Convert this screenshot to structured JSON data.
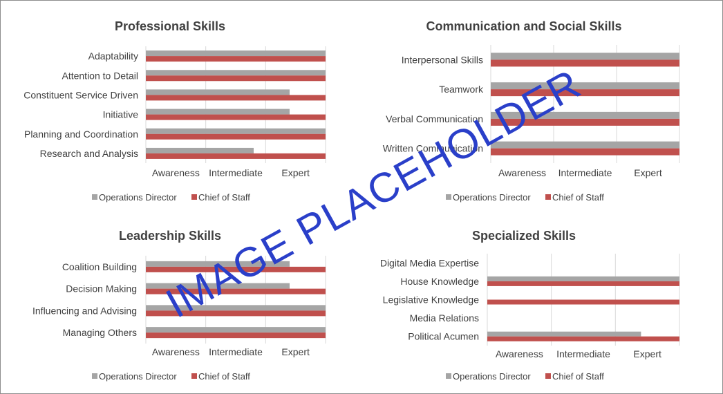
{
  "chart_data": [
    {
      "type": "bar",
      "orientation": "horizontal",
      "title": "Professional Skills",
      "categories": [
        "Adaptability",
        "Attention to Detail",
        "Constituent Service Driven",
        "Initiative",
        "Planning and Coordination",
        "Research and Analysis"
      ],
      "x_ticks": [
        "Awareness",
        "Intermediate",
        "Expert"
      ],
      "xlim": [
        0,
        3
      ],
      "grid": true,
      "legend_position": "bottom",
      "series": [
        {
          "name": "Operations Director",
          "values": [
            3,
            3,
            2.4,
            2.4,
            3,
            1.8
          ]
        },
        {
          "name": "Chief of Staff",
          "values": [
            3,
            3,
            3,
            3,
            3,
            3
          ]
        }
      ]
    },
    {
      "type": "bar",
      "orientation": "horizontal",
      "title": "Communication and Social Skills",
      "categories": [
        "Interpersonal Skills",
        "Teamwork",
        "Verbal Communication",
        "Written Communication"
      ],
      "x_ticks": [
        "Awareness",
        "Intermediate",
        "Expert"
      ],
      "xlim": [
        0,
        3
      ],
      "grid": true,
      "legend_position": "bottom",
      "series": [
        {
          "name": "Operations Director",
          "values": [
            3,
            3,
            3,
            3
          ]
        },
        {
          "name": "Chief of Staff",
          "values": [
            3,
            3,
            3,
            3
          ]
        }
      ]
    },
    {
      "type": "bar",
      "orientation": "horizontal",
      "title": "Leadership Skills",
      "categories": [
        "Coalition Building",
        "Decision Making",
        "Influencing and Advising",
        "Managing Others"
      ],
      "x_ticks": [
        "Awareness",
        "Intermediate",
        "Expert"
      ],
      "xlim": [
        0,
        3
      ],
      "grid": true,
      "legend_position": "bottom",
      "series": [
        {
          "name": "Operations Director",
          "values": [
            2.4,
            2.4,
            3,
            3
          ]
        },
        {
          "name": "Chief of Staff",
          "values": [
            3,
            3,
            3,
            3
          ]
        }
      ]
    },
    {
      "type": "bar",
      "orientation": "horizontal",
      "title": "Specialized Skills",
      "categories": [
        "Digital Media Expertise",
        "House Knowledge",
        "Legislative Knowledge",
        "Media Relations",
        "Political Acumen"
      ],
      "x_ticks": [
        "Awareness",
        "Intermediate",
        "Expert"
      ],
      "xlim": [
        0,
        3
      ],
      "grid": true,
      "legend_position": "bottom",
      "series": [
        {
          "name": "Operations Director",
          "values": [
            0,
            3,
            0,
            0,
            2.4
          ]
        },
        {
          "name": "Chief of Staff",
          "values": [
            0,
            3,
            3,
            0,
            3
          ]
        }
      ]
    }
  ],
  "colors": {
    "Operations Director": "#a5a5a5",
    "Chief of Staff": "#c0504d",
    "grid": "#d9d9d9",
    "text": "#404040"
  },
  "watermark": "IMAGE PLACEHOLDER"
}
